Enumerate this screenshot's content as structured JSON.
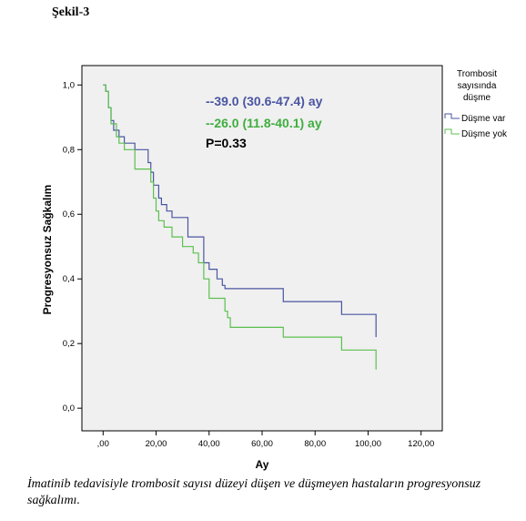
{
  "figure_label": "Şekil-3",
  "caption": "İmatinib tedavisiyle trombosit sayısı düzeyi düşen ve düşmeyen hastaların progresyonsuz sağkalımı.",
  "chart_data": {
    "type": "line",
    "subtype": "kaplan-meier-step",
    "xlabel": "Ay",
    "ylabel": "Progresyonsuz Sağkalım",
    "xlim": [
      -8,
      128
    ],
    "ylim": [
      -0.07,
      1.06
    ],
    "x_ticks": [
      {
        "value": 0,
        "label": ",00"
      },
      {
        "value": 20,
        "label": "20,00"
      },
      {
        "value": 40,
        "label": "40,00"
      },
      {
        "value": 60,
        "label": "60,00"
      },
      {
        "value": 80,
        "label": "80,00"
      },
      {
        "value": 100,
        "label": "100,00"
      },
      {
        "value": 120,
        "label": "120,00"
      }
    ],
    "y_ticks": [
      {
        "value": 0,
        "label": "0,0"
      },
      {
        "value": 0.2,
        "label": "0,2"
      },
      {
        "value": 0.4,
        "label": "0,4"
      },
      {
        "value": 0.6,
        "label": "0,6"
      },
      {
        "value": 0.8,
        "label": "0,8"
      },
      {
        "value": 1.0,
        "label": "1,0"
      }
    ],
    "grid": false,
    "background": "#f0f0f0",
    "legend": {
      "title": [
        "Trombosit",
        "sayısında",
        "düşme"
      ],
      "position": "right"
    },
    "series": [
      {
        "name": "Düşme var",
        "color": "#4a55a2",
        "points": [
          [
            0,
            1.0
          ],
          [
            1,
            0.98
          ],
          [
            2,
            0.93
          ],
          [
            3,
            0.89
          ],
          [
            4,
            0.86
          ],
          [
            6,
            0.84
          ],
          [
            8,
            0.82
          ],
          [
            12,
            0.8
          ],
          [
            17,
            0.76
          ],
          [
            18,
            0.73
          ],
          [
            19,
            0.69
          ],
          [
            21,
            0.65
          ],
          [
            22,
            0.63
          ],
          [
            24,
            0.61
          ],
          [
            26,
            0.59
          ],
          [
            32,
            0.53
          ],
          [
            38,
            0.45
          ],
          [
            40,
            0.43
          ],
          [
            43,
            0.4
          ],
          [
            45,
            0.38
          ],
          [
            46,
            0.37
          ],
          [
            68,
            0.33
          ],
          [
            90,
            0.29
          ],
          [
            103,
            0.25
          ]
        ]
      },
      {
        "name": "Düşme yok",
        "color": "#5cbf4f",
        "points": [
          [
            0,
            1.0
          ],
          [
            1,
            0.98
          ],
          [
            2,
            0.93
          ],
          [
            3,
            0.88
          ],
          [
            5,
            0.84
          ],
          [
            6,
            0.82
          ],
          [
            8,
            0.8
          ],
          [
            12,
            0.74
          ],
          [
            18,
            0.7
          ],
          [
            19,
            0.65
          ],
          [
            20,
            0.61
          ],
          [
            21,
            0.58
          ],
          [
            23,
            0.56
          ],
          [
            26,
            0.53
          ],
          [
            30,
            0.5
          ],
          [
            34,
            0.48
          ],
          [
            36,
            0.45
          ],
          [
            38,
            0.4
          ],
          [
            40,
            0.34
          ],
          [
            46,
            0.3
          ],
          [
            47,
            0.28
          ],
          [
            48,
            0.25
          ],
          [
            68,
            0.22
          ],
          [
            90,
            0.18
          ],
          [
            103,
            0.15
          ]
        ]
      }
    ],
    "annotations": [
      {
        "text": "--39.0 (30.6-47.4) ay",
        "color": "#4a55a2"
      },
      {
        "text": "--26.0 (11.8-40.1) ay",
        "color": "#3fae3f"
      },
      {
        "text": "P=0.33",
        "color": "#000000"
      }
    ]
  }
}
